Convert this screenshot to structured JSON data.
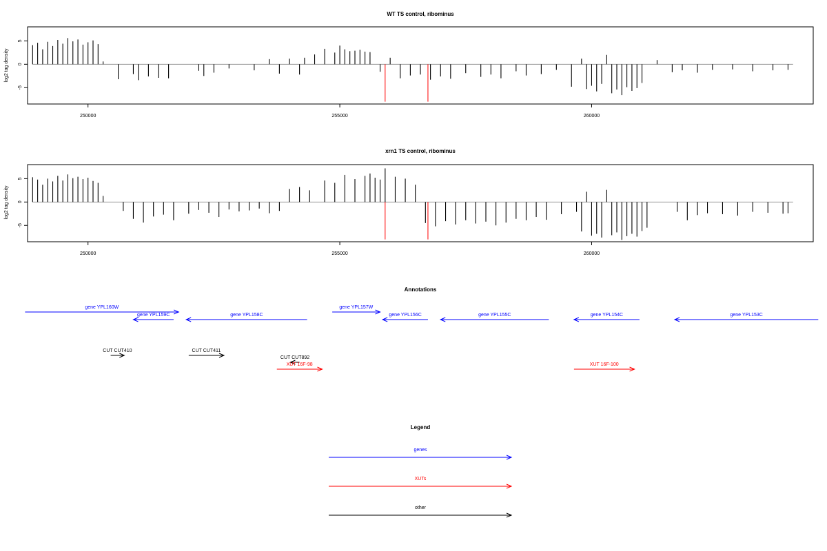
{
  "chart_data": [
    {
      "type": "bar",
      "title": "WT TS control, ribominus",
      "xlabel": "",
      "ylabel": "log2 tag density",
      "xlim": [
        248800,
        264400
      ],
      "ylim": [
        -8.5,
        8
      ],
      "xticks": [
        250000,
        255000,
        260000
      ],
      "yticks": [
        5,
        0,
        -5
      ],
      "series": [
        {
          "x": [
            248900,
            249000,
            249100,
            249200,
            249300,
            249400,
            249500,
            249600,
            249700,
            249800,
            249900,
            250000,
            250100,
            250200,
            250300,
            250600,
            250900,
            251000,
            251200,
            251400,
            251600,
            252200,
            252300,
            252500,
            252800,
            253300,
            253600,
            253800,
            254000,
            254200,
            254300,
            254500,
            254700,
            254900,
            255000,
            255100,
            255200,
            255300,
            255400,
            255500,
            255600,
            255800,
            256000,
            256200,
            256400,
            256600,
            256800,
            257000,
            257200,
            257500,
            257800,
            258000,
            258200,
            258500,
            258700,
            259000,
            259300,
            259600,
            259800,
            259900,
            260000,
            260100,
            260200,
            260300,
            260400,
            260500,
            260600,
            260700,
            260800,
            260900,
            261000,
            261300,
            261600,
            261800,
            262100,
            262400,
            262800,
            263200,
            263600,
            263900
          ],
          "values": [
            4.1,
            4.6,
            3.2,
            4.8,
            3.9,
            5.2,
            4.4,
            5.6,
            4.9,
            5.3,
            4.2,
            4.7,
            5.1,
            4.3,
            0.6,
            -3.2,
            -2.1,
            -3.4,
            -2.6,
            -2.9,
            -3.0,
            -1.4,
            -2.5,
            -1.8,
            -0.9,
            -1.3,
            1.1,
            -2.0,
            1.2,
            -2.2,
            1.4,
            2.1,
            3.3,
            2.5,
            4.0,
            3.2,
            2.8,
            2.9,
            3.1,
            2.7,
            2.6,
            -1.6,
            1.4,
            -3.0,
            -2.4,
            -2.2,
            -3.3,
            -2.6,
            -3.1,
            -1.9,
            -2.7,
            -2.2,
            -3.0,
            -1.5,
            -2.4,
            -2.1,
            -1.2,
            -4.8,
            1.2,
            -5.3,
            -4.6,
            -5.8,
            -4.2,
            2.0,
            -6.2,
            -5.4,
            -6.6,
            -4.9,
            -5.7,
            -5.1,
            -4.0,
            0.9,
            -1.7,
            -1.3,
            -1.8,
            -1.2,
            -1.1,
            -1.5,
            -1.3,
            -1.2
          ]
        },
        {
          "x": [
            255900,
            256750
          ],
          "values": [
            -8.0,
            -8.0
          ],
          "color": "#ff0000"
        }
      ]
    },
    {
      "type": "bar",
      "title": "xrn1 TS control, ribominus",
      "xlabel": "",
      "ylabel": "log2 tag density",
      "xlim": [
        248800,
        264400
      ],
      "ylim": [
        -8.5,
        8
      ],
      "xticks": [
        250000,
        255000,
        260000
      ],
      "yticks": [
        5,
        0,
        -5
      ],
      "series": [
        {
          "x": [
            248900,
            249000,
            249100,
            249200,
            249300,
            249400,
            249500,
            249600,
            249700,
            249800,
            249900,
            250000,
            250100,
            250200,
            250300,
            250700,
            250900,
            251100,
            251300,
            251500,
            251700,
            252000,
            252200,
            252400,
            252600,
            252800,
            253000,
            253200,
            253400,
            253600,
            253800,
            254000,
            254200,
            254400,
            254700,
            254900,
            255100,
            255300,
            255500,
            255600,
            255700,
            255800,
            255900,
            256100,
            256300,
            256500,
            256700,
            256900,
            257100,
            257300,
            257500,
            257700,
            257900,
            258100,
            258300,
            258500,
            258700,
            258900,
            259100,
            259400,
            259700,
            259800,
            259900,
            260000,
            260100,
            260200,
            260300,
            260400,
            260500,
            260600,
            260700,
            260800,
            260900,
            261000,
            261100,
            261700,
            261900,
            262100,
            262300,
            262600,
            262900,
            263200,
            263500,
            263800,
            263900
          ],
          "values": [
            5.3,
            4.8,
            3.7,
            5.0,
            4.4,
            5.6,
            4.6,
            5.9,
            5.1,
            5.4,
            4.9,
            5.2,
            4.5,
            4.1,
            1.3,
            -1.9,
            -3.6,
            -4.4,
            -3.1,
            -2.7,
            -3.9,
            -2.5,
            -1.7,
            -2.3,
            -3.2,
            -1.6,
            -2.0,
            -1.8,
            -1.4,
            -2.4,
            -1.9,
            2.8,
            3.2,
            2.5,
            4.6,
            4.1,
            5.8,
            4.9,
            5.6,
            6.1,
            5.2,
            4.8,
            7.2,
            5.4,
            5.0,
            3.7,
            -4.5,
            -5.2,
            -4.1,
            -4.8,
            -3.9,
            -4.6,
            -4.2,
            -5.0,
            -4.4,
            -3.6,
            -3.9,
            -3.2,
            -3.8,
            -2.6,
            -2.1,
            -6.3,
            2.2,
            -7.2,
            -6.8,
            -7.6,
            2.6,
            -7.1,
            -6.5,
            -8.1,
            -7.3,
            -6.8,
            -7.4,
            -6.2,
            -5.5,
            -2.1,
            -3.9,
            -2.8,
            -2.4,
            -2.6,
            -2.9,
            -2.1,
            -2.3,
            -2.5,
            -2.4
          ]
        },
        {
          "x": [
            255900,
            256750
          ],
          "values": [
            -8.0,
            -8.0
          ],
          "color": "#ff0000"
        }
      ]
    }
  ],
  "annotations": {
    "title": "Annotations",
    "colors": {
      "gene": "#0000ff",
      "xut": "#ff0000",
      "other": "#000000"
    },
    "features": [
      {
        "label": "gene YPL160W",
        "kind": "gene",
        "start": 248750,
        "end": 251800,
        "dir": "right"
      },
      {
        "label": "gene YPL159C",
        "kind": "gene",
        "start": 250900,
        "end": 251700,
        "dir": "left"
      },
      {
        "label": "gene YPL158C",
        "kind": "gene",
        "start": 251950,
        "end": 254350,
        "dir": "left"
      },
      {
        "label": "gene YPL157W",
        "kind": "gene",
        "start": 254850,
        "end": 255800,
        "dir": "right"
      },
      {
        "label": "gene YPL156C",
        "kind": "gene",
        "start": 255850,
        "end": 256750,
        "dir": "left"
      },
      {
        "label": "gene YPL155C",
        "kind": "gene",
        "start": 257000,
        "end": 259150,
        "dir": "left"
      },
      {
        "label": "gene YPL154C",
        "kind": "gene",
        "start": 259650,
        "end": 260950,
        "dir": "left"
      },
      {
        "label": "gene YPL153C",
        "kind": "gene",
        "start": 261650,
        "end": 264500,
        "dir": "left"
      },
      {
        "label": "CUT CUT410",
        "kind": "other",
        "start": 250450,
        "end": 250720,
        "dir": "right"
      },
      {
        "label": "CUT CUT411",
        "kind": "other",
        "start": 252000,
        "end": 252700,
        "dir": "right"
      },
      {
        "label": "CUT CUT892",
        "kind": "other",
        "start": 254020,
        "end": 254200,
        "dir": "left"
      },
      {
        "label": "XUT 16F-98",
        "kind": "xut",
        "start": 253750,
        "end": 254650,
        "dir": "right"
      },
      {
        "label": "XUT 16F-100",
        "kind": "xut",
        "start": 259650,
        "end": 260850,
        "dir": "right"
      }
    ]
  },
  "legend": {
    "title": "Legend",
    "items": [
      {
        "label": "genes",
        "color": "#0000ff"
      },
      {
        "label": "XUTs",
        "color": "#ff0000"
      },
      {
        "label": "other",
        "color": "#000000"
      }
    ]
  }
}
